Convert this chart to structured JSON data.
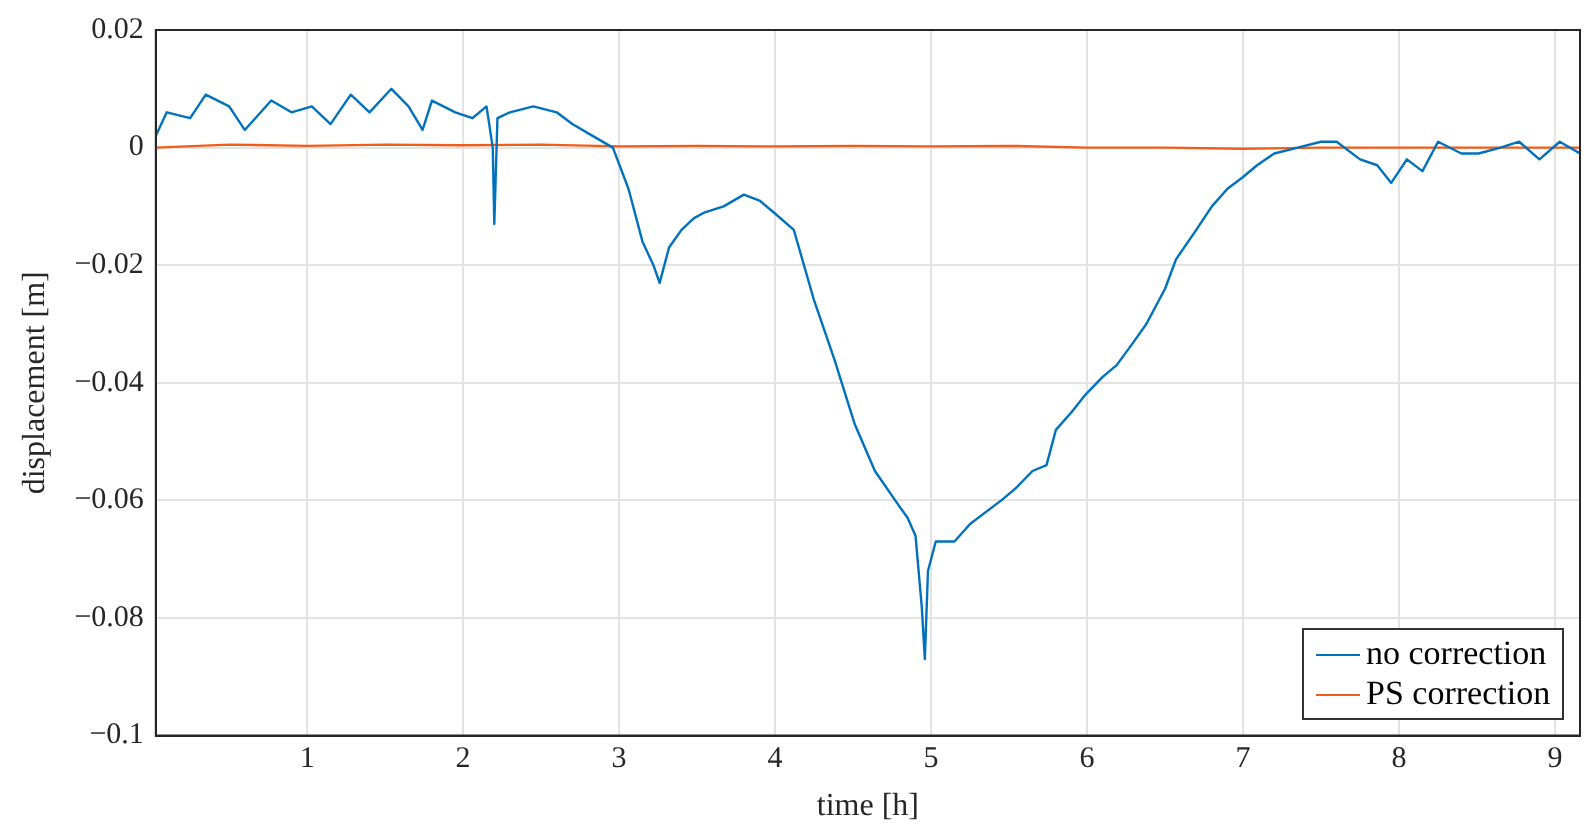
{
  "chart_data": {
    "type": "line",
    "xlabel": "time [h]",
    "ylabel": "displacement [m]",
    "xlim": [
      0.03,
      9.16
    ],
    "xticks": [
      1,
      2,
      3,
      4,
      5,
      6,
      7,
      8,
      9
    ],
    "ylim": [
      -0.1,
      0.02
    ],
    "yticks": [
      -0.1,
      -0.08,
      -0.06,
      -0.04,
      -0.02,
      0,
      0.02
    ],
    "grid": true,
    "legend": "bottom right",
    "marker": "none",
    "line_style": "solid",
    "series": [
      {
        "name": "no correction",
        "color": "#0072bd",
        "x": [
          0.03,
          0.1,
          0.25,
          0.35,
          0.5,
          0.6,
          0.77,
          0.9,
          1.03,
          1.15,
          1.28,
          1.4,
          1.54,
          1.65,
          1.74,
          1.8,
          1.95,
          2.06,
          2.15,
          2.19,
          2.2,
          2.22,
          2.3,
          2.45,
          2.6,
          2.7,
          2.83,
          2.96,
          3.06,
          3.15,
          3.22,
          3.26,
          3.32,
          3.4,
          3.48,
          3.55,
          3.67,
          3.8,
          3.9,
          3.99,
          4.12,
          4.25,
          4.38,
          4.51,
          4.64,
          4.77,
          4.85,
          4.9,
          4.94,
          4.96,
          4.98,
          5.03,
          5.15,
          5.25,
          5.35,
          5.45,
          5.54,
          5.65,
          5.74,
          5.8,
          5.9,
          5.99,
          6.1,
          6.19,
          6.3,
          6.38,
          6.5,
          6.57,
          6.7,
          6.8,
          6.9,
          7.0,
          7.09,
          7.2,
          7.35,
          7.5,
          7.6,
          7.75,
          7.86,
          7.95,
          8.05,
          8.15,
          8.25,
          8.4,
          8.51,
          8.65,
          8.77,
          8.9,
          9.03,
          9.16
        ],
        "values": [
          0.002,
          0.006,
          0.005,
          0.009,
          0.007,
          0.003,
          0.008,
          0.006,
          0.007,
          0.004,
          0.009,
          0.006,
          0.01,
          0.007,
          0.003,
          0.008,
          0.006,
          0.005,
          0.007,
          0.0,
          -0.013,
          0.005,
          0.006,
          0.007,
          0.006,
          0.004,
          0.002,
          0.0,
          -0.007,
          -0.016,
          -0.02,
          -0.023,
          -0.017,
          -0.014,
          -0.012,
          -0.011,
          -0.01,
          -0.008,
          -0.009,
          -0.011,
          -0.014,
          -0.026,
          -0.036,
          -0.047,
          -0.055,
          -0.06,
          -0.063,
          -0.066,
          -0.078,
          -0.087,
          -0.072,
          -0.067,
          -0.067,
          -0.064,
          -0.062,
          -0.06,
          -0.058,
          -0.055,
          -0.054,
          -0.048,
          -0.045,
          -0.042,
          -0.039,
          -0.037,
          -0.033,
          -0.03,
          -0.024,
          -0.019,
          -0.014,
          -0.01,
          -0.007,
          -0.005,
          -0.003,
          -0.001,
          0.0,
          0.001,
          0.001,
          -0.002,
          -0.003,
          -0.006,
          -0.002,
          -0.004,
          0.001,
          -0.001,
          -0.001,
          0.0,
          0.001,
          -0.002,
          0.001,
          -0.001
        ]
      },
      {
        "name": "PS correction",
        "color": "#f25c19",
        "x": [
          0.03,
          0.5,
          1.0,
          1.5,
          2.0,
          2.5,
          3.0,
          3.5,
          4.0,
          4.5,
          5.0,
          5.5,
          6.0,
          6.5,
          7.0,
          7.5,
          8.0,
          8.5,
          9.0,
          9.16
        ],
        "values": [
          0.0,
          0.0005,
          0.0003,
          0.0005,
          0.0004,
          0.0005,
          0.0002,
          0.0003,
          0.0002,
          0.0003,
          0.0002,
          0.0003,
          0.0,
          0.0,
          -0.0002,
          0.0,
          0.0,
          0.0,
          0.0,
          0.0
        ]
      }
    ]
  }
}
